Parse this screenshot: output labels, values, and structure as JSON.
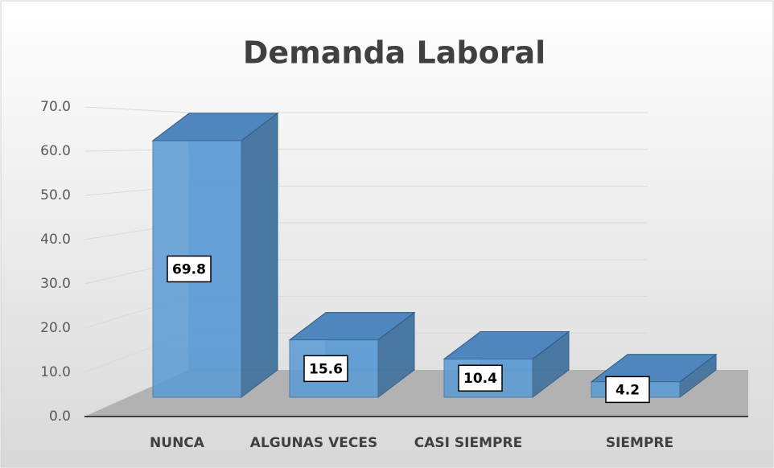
{
  "chart_data": {
    "type": "bar",
    "title": "Demanda Laboral",
    "categories": [
      "NUNCA",
      "ALGUNAS VECES",
      "CASI SIEMPRE",
      "SIEMPRE"
    ],
    "values": [
      69.8,
      15.6,
      10.4,
      4.2
    ],
    "color": "#5b9bd5",
    "ylim": [
      0,
      70
    ],
    "yticks": [
      {
        "value": 0,
        "label": "0.0"
      },
      {
        "value": 10,
        "label": "10.0"
      },
      {
        "value": 20,
        "label": "20.0"
      },
      {
        "value": 30,
        "label": "30.0"
      },
      {
        "value": 40,
        "label": "40.0"
      },
      {
        "value": 50,
        "label": "50.0"
      },
      {
        "value": 60,
        "label": "60.0"
      },
      {
        "value": 70,
        "label": "70.0"
      }
    ],
    "grid": true
  }
}
